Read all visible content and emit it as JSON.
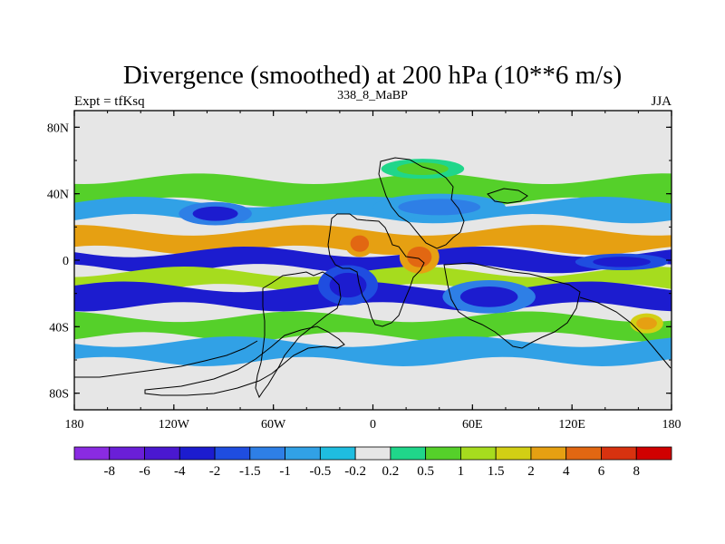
{
  "chart_data": {
    "type": "heatmap",
    "title": "Divergence (smoothed) at 200 hPa (10**6 m/s)",
    "left_label": "Expt = tfKsq",
    "center_label": "338_8_MaBP",
    "right_label": "JJA",
    "x_range": [
      -180,
      180
    ],
    "y_range": [
      -90,
      90
    ],
    "x_ticks": [
      {
        "value": -180,
        "label": "180"
      },
      {
        "value": -120,
        "label": "120W"
      },
      {
        "value": -60,
        "label": "60W"
      },
      {
        "value": 0,
        "label": "0"
      },
      {
        "value": 60,
        "label": "60E"
      },
      {
        "value": 120,
        "label": "120E"
      },
      {
        "value": 180,
        "label": "180"
      }
    ],
    "y_ticks": [
      {
        "value": 80,
        "label": "80N"
      },
      {
        "value": 40,
        "label": "40N"
      },
      {
        "value": 0,
        "label": "0"
      },
      {
        "value": -40,
        "label": "40S"
      },
      {
        "value": -80,
        "label": "80S"
      }
    ],
    "levels": [
      "-8",
      "-6",
      "-4",
      "-2",
      "-1.5",
      "-1",
      "-0.5",
      "-0.2",
      "0.2",
      "0.5",
      "1",
      "1.5",
      "2",
      "4",
      "6",
      "8"
    ],
    "colors": [
      "#8a2be2",
      "#6a1fd8",
      "#4a18d0",
      "#1c1ccf",
      "#1f4de0",
      "#2e7fe6",
      "#31a1e6",
      "#1fbde0",
      "#e6e6e6",
      "#20d68a",
      "#55d02a",
      "#a6dc1e",
      "#d2cf14",
      "#e6a012",
      "#e26712",
      "#d8320f",
      "#d00000"
    ],
    "bands": [
      {
        "name": "n-subtropical-green",
        "lat": 42,
        "width": 7,
        "value": 0.7
      },
      {
        "name": "n-midlat-blue",
        "lat": 30,
        "width": 5,
        "value": -0.8
      },
      {
        "name": "n-tropical-orange",
        "lat": 12,
        "width": 6,
        "value": 2.5
      },
      {
        "name": "equatorial-blue",
        "lat": 0,
        "width": 5,
        "value": -2.5
      },
      {
        "name": "s-tropical-green",
        "lat": -12,
        "width": 5,
        "value": 1.0
      },
      {
        "name": "s-subtropical-blue",
        "lat": -22,
        "width": 6,
        "value": -2.2
      },
      {
        "name": "s-midlat-green",
        "lat": -40,
        "width": 6,
        "value": 0.9
      },
      {
        "name": "s-high-blue",
        "lat": -55,
        "width": 6,
        "value": -0.7
      }
    ],
    "blobs": [
      {
        "name": "africa-west-red",
        "lon": -8,
        "lat": 10,
        "rx": 9,
        "ry": 8,
        "value": 5.5
      },
      {
        "name": "atlantic-blue-core",
        "lon": -15,
        "lat": -15,
        "rx": 18,
        "ry": 12,
        "value": -3.5
      },
      {
        "name": "east-africa-orange",
        "lon": 28,
        "lat": 2,
        "rx": 12,
        "ry": 10,
        "value": 4.0
      },
      {
        "name": "eurasia-blue",
        "lon": 40,
        "lat": 32,
        "rx": 40,
        "ry": 8,
        "value": -1.5
      },
      {
        "name": "indian-ocean-blue",
        "lon": 70,
        "lat": -22,
        "rx": 28,
        "ry": 10,
        "value": -3.0
      },
      {
        "name": "pacific-east-blue",
        "lon": -95,
        "lat": 28,
        "rx": 22,
        "ry": 7,
        "value": -2.2
      },
      {
        "name": "pacific-south-orange",
        "lon": 165,
        "lat": -38,
        "rx": 10,
        "ry": 6,
        "value": 3.0
      },
      {
        "name": "pacific-blue-equatorial",
        "lon": 150,
        "lat": -1,
        "rx": 28,
        "ry": 5,
        "value": -3.2
      },
      {
        "name": "arctic-ring-green",
        "lon": 30,
        "lat": 55,
        "rx": 25,
        "ry": 6,
        "value": 0.8
      }
    ]
  }
}
